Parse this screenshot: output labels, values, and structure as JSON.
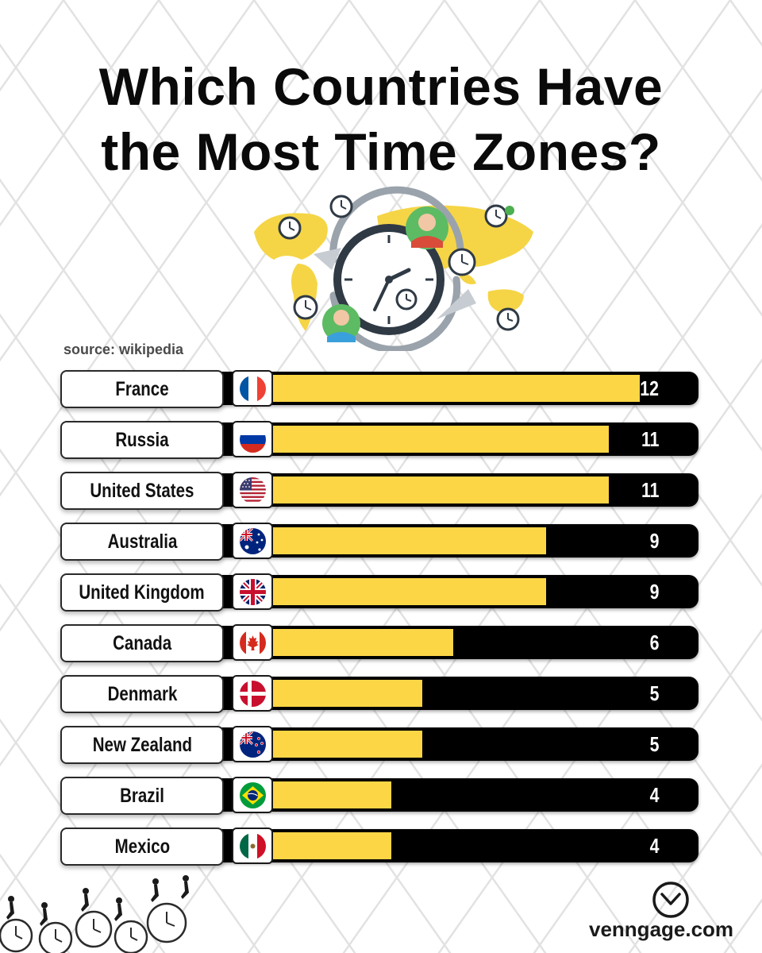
{
  "title_line1": "Which Countries Have",
  "title_line2": "the Most Time Zones?",
  "source": "source: wikipedia",
  "brand": "venngage.com",
  "colors": {
    "bar_fill": "#fdd646",
    "bar_track": "#000000",
    "map": "#f5d546",
    "value_text": "#ffffff"
  },
  "icons": {
    "hero": "world-map-clocks-illustration",
    "brand": "venngage-clock-logo-icon",
    "footer": "running-people-on-clocks-illustration"
  },
  "chart_data": {
    "type": "bar",
    "orientation": "horizontal",
    "title": "Which Countries Have the Most Time Zones?",
    "xlabel": "",
    "ylabel": "",
    "xlim": [
      0,
      13.9
    ],
    "grid": false,
    "legend": "none",
    "categories": [
      "France",
      "Russia",
      "United States",
      "Australia",
      "United Kingdom",
      "Canada",
      "Denmark",
      "New Zealand",
      "Brazil",
      "Mexico"
    ],
    "values": [
      12,
      11,
      11,
      9,
      9,
      6,
      5,
      5,
      4,
      4
    ],
    "value_labels": [
      "12",
      "11",
      "11",
      "9",
      "9",
      "6",
      "5",
      "5",
      "4",
      "4"
    ],
    "flags": [
      "flag-france-icon",
      "flag-russia-icon",
      "flag-usa-icon",
      "flag-australia-icon",
      "flag-uk-icon",
      "flag-canada-icon",
      "flag-denmark-icon",
      "flag-new-zealand-icon",
      "flag-brazil-icon",
      "flag-mexico-icon"
    ]
  }
}
